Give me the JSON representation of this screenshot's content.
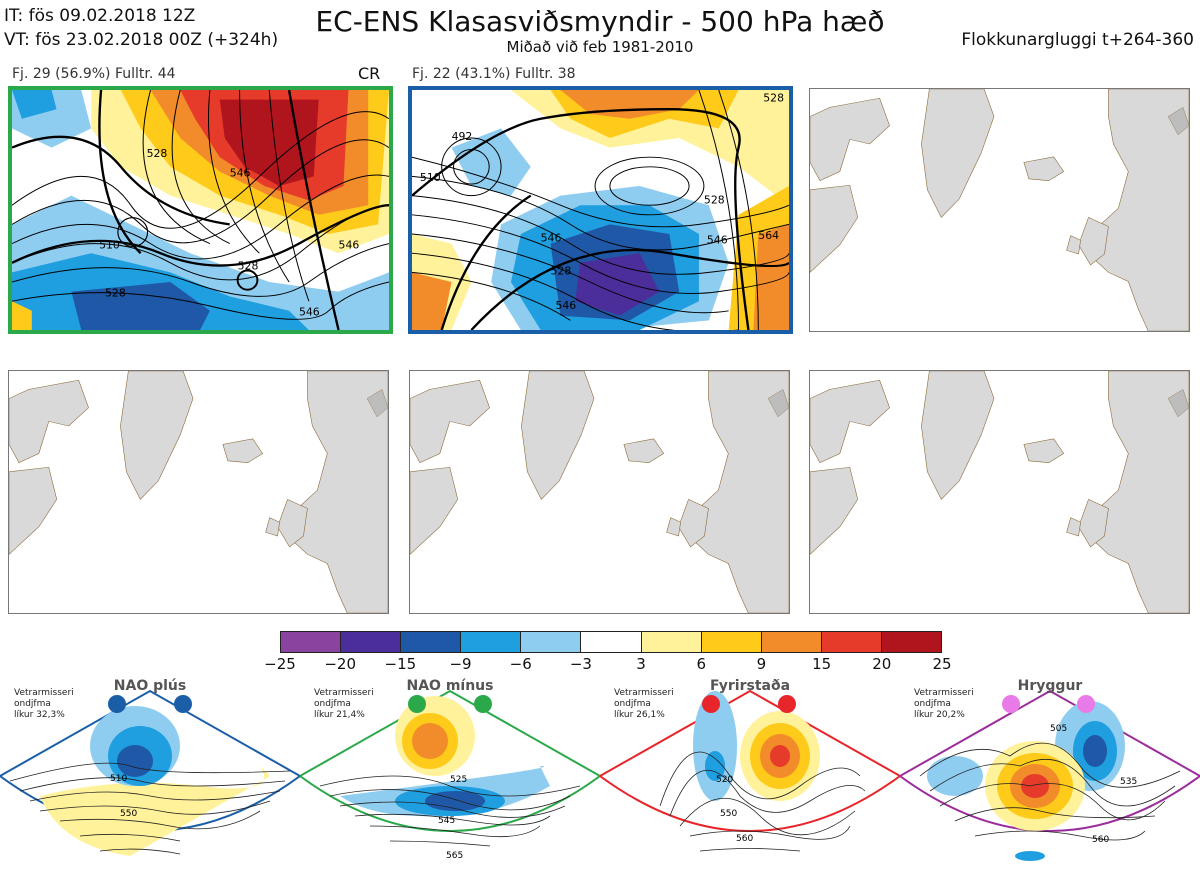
{
  "header": {
    "it": "IT: fös 09.02.2018 12Z",
    "vt": "VT: fös 23.02.2018 00Z  (+324h)",
    "title": "EC-ENS Klasasviðsmyndir - 500 hPa hæð",
    "subtitle": "Miðað við feb 1981-2010",
    "window": "Flokkunargluggi t+264-360"
  },
  "panels": [
    {
      "label": "Fj. 29 (56.9%)   Fulltr. 44",
      "tag": "CR",
      "border": "#2aa84a"
    },
    {
      "label": "Fj. 22 (43.1%)   Fulltr. 38",
      "tag": "",
      "border": "#1a5ea8"
    }
  ],
  "colorbar": {
    "colors": [
      "#8a44a0",
      "#4b2e9a",
      "#1e58a6",
      "#1f9ee0",
      "#8fcdf0",
      "#ffffff",
      "#fff29a",
      "#ffcb1a",
      "#f28c2a",
      "#e63b2b",
      "#b0151d"
    ],
    "ticks": [
      "−25",
      "−20",
      "−15",
      "−9",
      "−6",
      "−3",
      "3",
      "6",
      "9",
      "15",
      "20",
      "25"
    ]
  },
  "regimes": [
    {
      "title": "NAO plús",
      "note1": "Vetrarmisseri",
      "note2": "ondjfma",
      "note3": "líkur 32,3%",
      "color": "#1a5ea8",
      "c1": "510",
      "c2": "550"
    },
    {
      "title": "NAO mínus",
      "note1": "Vetrarmisseri",
      "note2": "ondjfma",
      "note3": "líkur 21,4%",
      "color": "#2aa84a",
      "c1": "525",
      "c2": "545",
      "c3": "565"
    },
    {
      "title": "Fyrirstaða",
      "note1": "Vetrarmisseri",
      "note2": "ondjfma",
      "note3": "líkur 26,1%",
      "color": "#e8252a",
      "c1": "520",
      "c2": "550",
      "c3": "560"
    },
    {
      "title": "Hryggur",
      "note1": "Vetrarmisseri",
      "note2": "ondjfma",
      "note3": "líkur 20,2%",
      "color": "#9b2c9b",
      "c1": "505",
      "c2": "535",
      "c3": "560"
    }
  ],
  "contour_labels": {
    "p1": [
      "510",
      "528",
      "546",
      "528",
      "546",
      "528",
      "546"
    ],
    "p2": [
      "492",
      "510",
      "528",
      "546",
      "528",
      "546",
      "564",
      "546",
      "528"
    ]
  }
}
